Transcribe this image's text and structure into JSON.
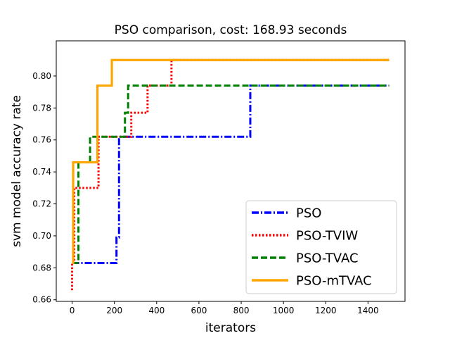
{
  "chart_data": {
    "type": "line",
    "title": "PSO comparison, cost: 168.93 seconds",
    "xlabel": "iterators",
    "ylabel": "svm model accuracy rate",
    "xlim": [
      -75,
      1575
    ],
    "ylim": [
      0.659,
      0.822
    ],
    "xticks": [
      0,
      200,
      400,
      600,
      800,
      1000,
      1200,
      1400
    ],
    "yticks": [
      0.66,
      0.68,
      0.7,
      0.72,
      0.74,
      0.76,
      0.78,
      0.8
    ],
    "xtick_labels": [
      "0",
      "200",
      "400",
      "600",
      "800",
      "1000",
      "1200",
      "1400"
    ],
    "ytick_labels": [
      "0.66",
      "0.68",
      "0.70",
      "0.72",
      "0.74",
      "0.76",
      "0.78",
      "0.80"
    ],
    "grid": false,
    "legend_position": "lower-right",
    "series": [
      {
        "name": "PSO",
        "color": "#0000ff",
        "style": "dashdot",
        "points": [
          [
            0,
            0.683
          ],
          [
            210,
            0.683
          ],
          [
            210,
            0.699
          ],
          [
            222,
            0.699
          ],
          [
            222,
            0.762
          ],
          [
            843,
            0.762
          ],
          [
            843,
            0.794
          ],
          [
            1500,
            0.794
          ]
        ]
      },
      {
        "name": "PSO-TVIW",
        "color": "#ff0000",
        "style": "dotted",
        "points": [
          [
            0,
            0.666
          ],
          [
            0,
            0.683
          ],
          [
            10,
            0.683
          ],
          [
            10,
            0.73
          ],
          [
            125,
            0.73
          ],
          [
            125,
            0.762
          ],
          [
            280,
            0.762
          ],
          [
            280,
            0.777
          ],
          [
            357,
            0.777
          ],
          [
            357,
            0.794
          ],
          [
            470,
            0.794
          ],
          [
            470,
            0.81
          ],
          [
            1500,
            0.81
          ]
        ]
      },
      {
        "name": "PSO-TVAC",
        "color": "#008000",
        "style": "dashed",
        "points": [
          [
            0,
            0.683
          ],
          [
            30,
            0.683
          ],
          [
            30,
            0.746
          ],
          [
            85,
            0.746
          ],
          [
            85,
            0.762
          ],
          [
            250,
            0.762
          ],
          [
            250,
            0.777
          ],
          [
            265,
            0.777
          ],
          [
            265,
            0.794
          ],
          [
            1500,
            0.794
          ]
        ]
      },
      {
        "name": "PSO-mTVAC",
        "color": "#ffa500",
        "style": "solid",
        "points": [
          [
            0,
            0.683
          ],
          [
            5,
            0.683
          ],
          [
            5,
            0.746
          ],
          [
            120,
            0.746
          ],
          [
            120,
            0.794
          ],
          [
            188,
            0.794
          ],
          [
            188,
            0.81
          ],
          [
            1500,
            0.81
          ]
        ]
      }
    ]
  }
}
